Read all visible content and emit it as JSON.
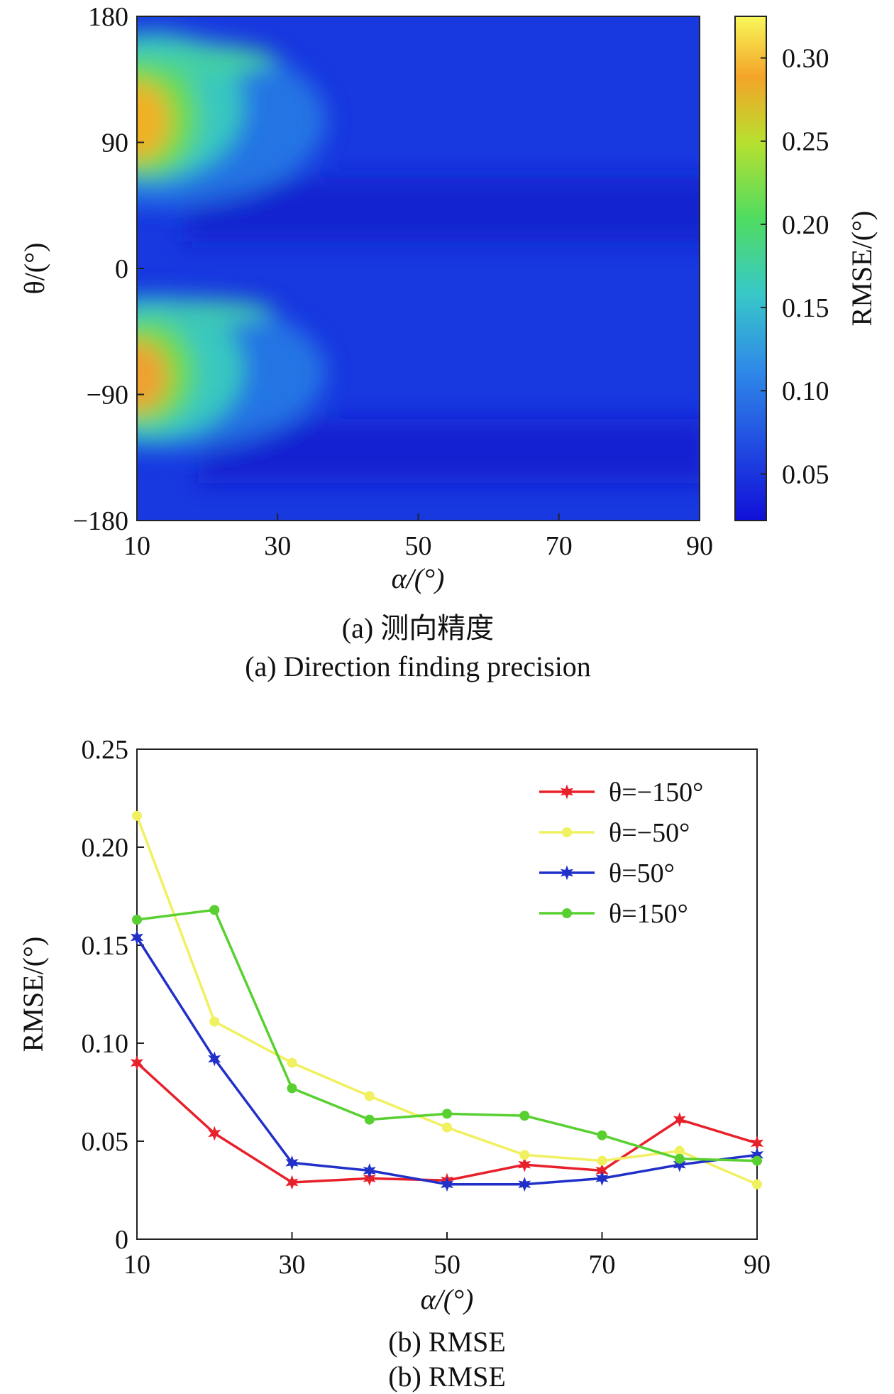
{
  "panel_a": {
    "caption_cn": "(a) 测向精度",
    "caption_en": "(a) Direction finding precision",
    "xlabel": "α/(°)",
    "ylabel": "θ/(°)",
    "colorbar_label": "RMSE/(°)"
  },
  "panel_b": {
    "caption_cn": "(b) RMSE",
    "caption_en": "(b) RMSE",
    "xlabel": "α/(°)",
    "ylabel": "RMSE/(°)"
  },
  "chart_data": [
    {
      "type": "heatmap",
      "title": "",
      "xlabel": "α/(°)",
      "ylabel": "θ/(°)",
      "xlim": [
        10,
        90
      ],
      "ylim": [
        -180,
        180
      ],
      "xticks": [
        10,
        30,
        50,
        70,
        90
      ],
      "yticks": [
        180,
        90,
        0,
        -90,
        -180
      ],
      "ytick_labels": [
        "180",
        "90",
        "0",
        "−90",
        "−180"
      ],
      "colorbar": {
        "label": "RMSE/(°)",
        "range": [
          0.022,
          0.325
        ],
        "ticks": [
          0.3,
          0.25,
          0.2,
          0.15,
          0.1,
          0.05
        ],
        "tick_labels": [
          "0.30",
          "0.25",
          "0.20",
          "0.15",
          "0.10",
          "0.05"
        ],
        "colors": [
          "#1010d8",
          "#1e5ae6",
          "#2fa0e8",
          "#38d0b0",
          "#5ee05a",
          "#c8e828",
          "#f6a224",
          "#f8f85a"
        ]
      },
      "hotspots": [
        {
          "alpha": 10,
          "theta": 100,
          "rmse": 0.3
        },
        {
          "alpha": 10,
          "theta": -85,
          "rmse": 0.29
        }
      ],
      "background_rmse": 0.04
    },
    {
      "type": "line",
      "title": "",
      "xlabel": "α/(°)",
      "ylabel": "RMSE/(°)",
      "xlim": [
        10,
        90
      ],
      "ylim": [
        0,
        0.25
      ],
      "xticks": [
        10,
        30,
        50,
        70,
        90
      ],
      "yticks": [
        0,
        0.05,
        0.1,
        0.15,
        0.2,
        0.25
      ],
      "ytick_labels": [
        "0",
        "0.05",
        "0.10",
        "0.15",
        "0.20",
        "0.25"
      ],
      "legend_position": "top-right",
      "x": [
        10,
        20,
        30,
        40,
        50,
        60,
        70,
        80,
        90
      ],
      "series": [
        {
          "name": "θ=−150°",
          "color": "#e8202a",
          "marker": "star",
          "values": [
            0.09,
            0.054,
            0.029,
            0.031,
            0.03,
            0.038,
            0.035,
            0.061,
            0.049
          ]
        },
        {
          "name": "θ=−50°",
          "color": "#f0f060",
          "marker": "circle",
          "values": [
            0.216,
            0.111,
            0.09,
            0.073,
            0.057,
            0.043,
            0.04,
            0.045,
            0.028
          ]
        },
        {
          "name": "θ=50°",
          "color": "#2030c8",
          "marker": "star",
          "values": [
            0.154,
            0.092,
            0.039,
            0.035,
            0.028,
            0.028,
            0.031,
            0.038,
            0.043
          ]
        },
        {
          "name": "θ=150°",
          "color": "#58d030",
          "marker": "circle",
          "values": [
            0.163,
            0.168,
            0.077,
            0.061,
            0.064,
            0.063,
            0.053,
            0.041,
            0.04
          ]
        }
      ]
    }
  ]
}
